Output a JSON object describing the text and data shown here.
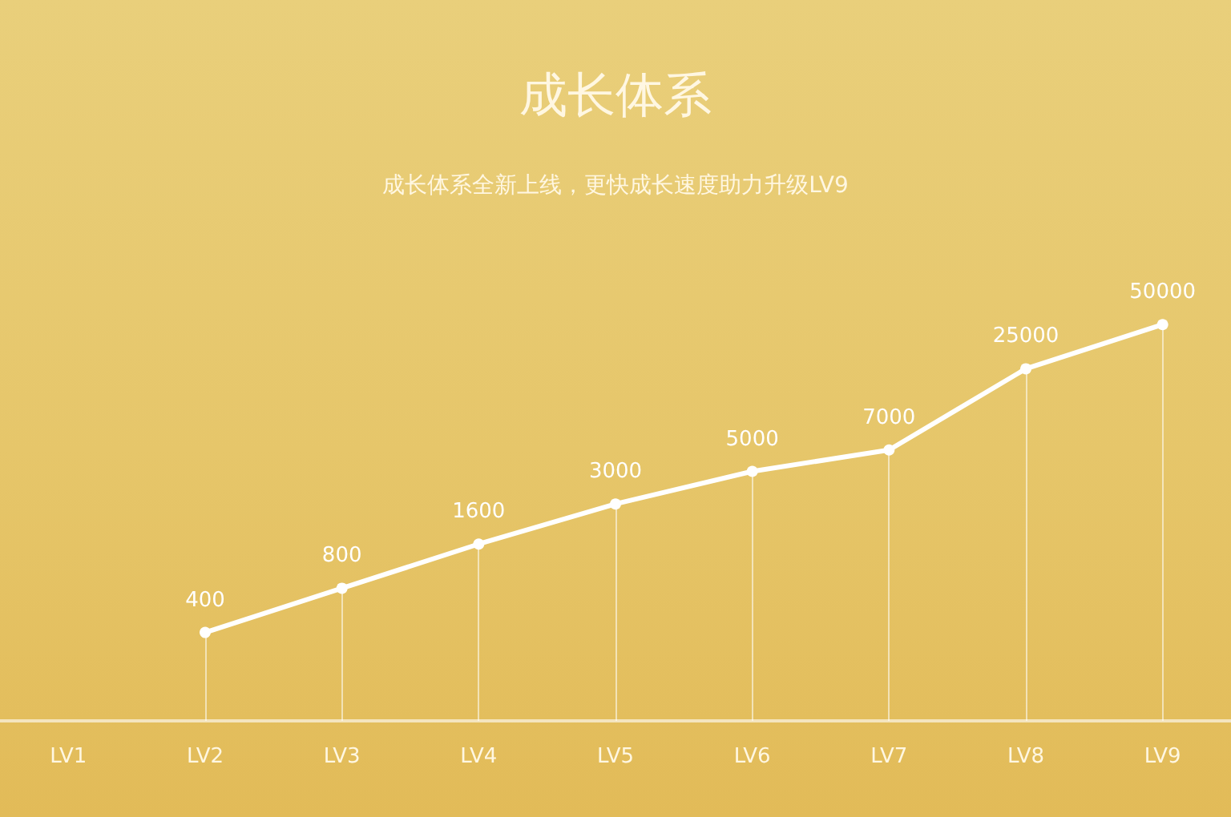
{
  "chart_data": {
    "type": "line",
    "title": "成长体系",
    "subtitle": "成长体系全新上线，更快成长速度助力升级LV9",
    "categories": [
      "LV1",
      "LV2",
      "LV3",
      "LV4",
      "LV5",
      "LV6",
      "LV7",
      "LV8",
      "LV9"
    ],
    "values": [
      null,
      400,
      800,
      1600,
      3000,
      5000,
      7000,
      25000,
      50000
    ],
    "color": "#ffffff",
    "log": true,
    "tick_labels": "x",
    "marker": "circle",
    "line_style": "solid",
    "data_labels": true,
    "grid": "x"
  }
}
